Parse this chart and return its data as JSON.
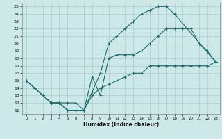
{
  "xlabel": "Humidex (Indice chaleur)",
  "bg_color": "#cde8e8",
  "line_color": "#1a6b6b",
  "grid_color": "#aacccc",
  "xlim": [
    -0.5,
    23.5
  ],
  "ylim": [
    10.5,
    25.5
  ],
  "xticks": [
    0,
    1,
    2,
    3,
    4,
    5,
    6,
    7,
    8,
    9,
    10,
    11,
    12,
    13,
    14,
    15,
    16,
    17,
    18,
    19,
    20,
    21,
    22,
    23
  ],
  "yticks": [
    11,
    12,
    13,
    14,
    15,
    16,
    17,
    18,
    19,
    20,
    21,
    22,
    23,
    24,
    25
  ],
  "line1_x": [
    0,
    1,
    2,
    3,
    4,
    5,
    6,
    7,
    8,
    9,
    10,
    11,
    12,
    13,
    14,
    15,
    16,
    17,
    18,
    23
  ],
  "line1_y": [
    15,
    14,
    13,
    12,
    12,
    11,
    11,
    11,
    13.5,
    16,
    20,
    21,
    22,
    23,
    24,
    24.5,
    25,
    25,
    24,
    17.5
  ],
  "line2_x": [
    0,
    2,
    3,
    5,
    6,
    7,
    8,
    9,
    10,
    11,
    12,
    13,
    14,
    15,
    16,
    17,
    18,
    19,
    20,
    21,
    22,
    23
  ],
  "line2_y": [
    15,
    13,
    12,
    12,
    12,
    11,
    15.5,
    13,
    18,
    18.5,
    18.5,
    18.5,
    19,
    20,
    21,
    22,
    22,
    22,
    22,
    20,
    19,
    17.5
  ],
  "line3_x": [
    0,
    1,
    2,
    3,
    4,
    5,
    6,
    7,
    8,
    9,
    10,
    11,
    12,
    13,
    14,
    15,
    16,
    17,
    18,
    19,
    20,
    21,
    22,
    23
  ],
  "line3_y": [
    15,
    14,
    13,
    12,
    12,
    11,
    11,
    11,
    13,
    14,
    14.5,
    15,
    15.5,
    16,
    16,
    17,
    17,
    17,
    17,
    17,
    17,
    17,
    17,
    17.5
  ]
}
